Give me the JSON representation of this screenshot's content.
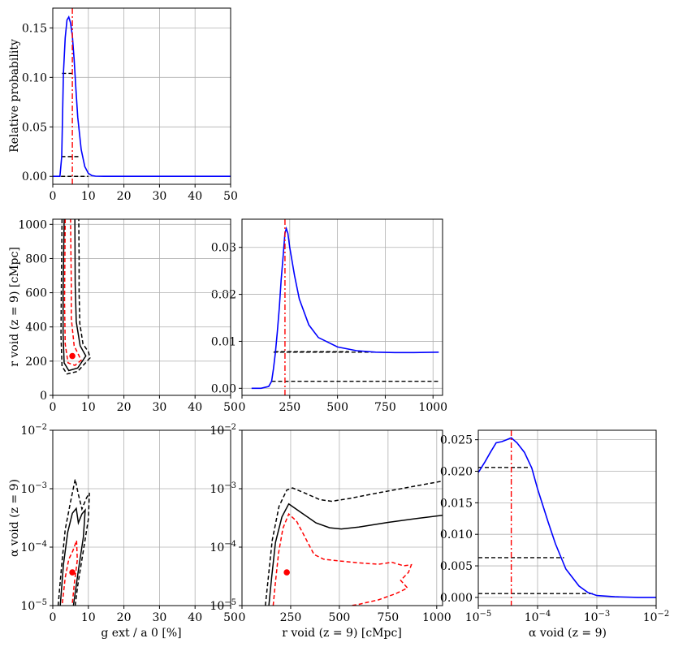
{
  "colors": {
    "pdf": "#0000ff",
    "marker": "#ff0000",
    "contour_black": "#000000",
    "contour_red": "#ff0000",
    "grid": "#b0b0b0"
  },
  "chart_data": [
    {
      "id": "g_pdf",
      "type": "line",
      "panel": "top-left",
      "xlim": [
        0,
        50
      ],
      "ylim": [
        -0.008,
        0.17
      ],
      "grid": true,
      "xticks": [
        "0",
        "10",
        "20",
        "30",
        "40",
        "50"
      ],
      "yticks": [
        "0.00",
        "0.05",
        "0.10",
        "0.15"
      ],
      "ylabel": "Relative probability",
      "xlabel": "",
      "series": [
        {
          "x": [
            0,
            2,
            2.5,
            3,
            3.5,
            4,
            4.5,
            5,
            5.5,
            6,
            6.5,
            7,
            8,
            9,
            10,
            11,
            12,
            15,
            20,
            30,
            40,
            50
          ],
          "y": [
            0,
            0,
            0.02,
            0.104,
            0.14,
            0.158,
            0.161,
            0.155,
            0.142,
            0.118,
            0.088,
            0.06,
            0.027,
            0.01,
            0.003,
            0.0008,
            0.0002,
            0,
            0,
            0,
            0,
            0
          ]
        }
      ],
      "vline": 5.5,
      "hlines": [
        {
          "y": 0.104,
          "x": [
            2.6,
            5.4
          ]
        },
        {
          "y": 0.02,
          "x": [
            2.4,
            7.2
          ]
        },
        {
          "y": 0.0,
          "x": [
            0.5,
            10
          ]
        }
      ]
    },
    {
      "id": "rvoid_pdf",
      "type": "line",
      "panel": "middle-center",
      "xlim": [
        0,
        1050
      ],
      "ylim": [
        -0.0015,
        0.036
      ],
      "grid": true,
      "xticks": [
        "0",
        "250",
        "500",
        "750",
        "1000"
      ],
      "yticks": [
        "0.00",
        "0.01",
        "0.02",
        "0.03"
      ],
      "xlabel": "",
      "ylabel": "",
      "series": [
        {
          "x": [
            50,
            100,
            140,
            155,
            165,
            175,
            185,
            195,
            205,
            215,
            225,
            232,
            240,
            250,
            275,
            300,
            350,
            400,
            500,
            600,
            700,
            800,
            900,
            1030
          ],
          "y": [
            0,
            0,
            0.0004,
            0.0015,
            0.0042,
            0.0077,
            0.012,
            0.017,
            0.023,
            0.028,
            0.033,
            0.034,
            0.033,
            0.03,
            0.024,
            0.019,
            0.0135,
            0.0108,
            0.0088,
            0.008,
            0.0077,
            0.0076,
            0.0076,
            0.0077
          ]
        }
      ],
      "vline": 225,
      "hlines": [
        {
          "y": 0.0077,
          "x": [
            165,
            700
          ]
        },
        {
          "y": 0.0015,
          "x": [
            155,
            1030
          ]
        },
        {
          "y": 0.0078,
          "x": [
            170,
            560
          ]
        }
      ]
    },
    {
      "id": "alpha_pdf",
      "type": "line",
      "panel": "bottom-right",
      "xscale": "log",
      "xlim": [
        1e-05,
        0.01
      ],
      "ylim": [
        -0.0013,
        0.0265
      ],
      "grid": true,
      "xticks": [
        "10−5",
        "10−4",
        "10−3",
        "10−2"
      ],
      "yticks": [
        "0.000",
        "0.005",
        "0.010",
        "0.015",
        "0.020",
        "0.025"
      ],
      "xlabel": "α void (z = 9)",
      "ylabel": "",
      "series": [
        {
          "x": [
            1e-05,
            1.3e-05,
            1.6e-05,
            2e-05,
            2.5e-05,
            3e-05,
            3.6e-05,
            4.5e-05,
            6e-05,
            8e-05,
            0.0001,
            0.00015,
            0.0002,
            0.0003,
            0.0005,
            0.0007,
            0.001,
            0.002,
            0.005,
            0.01
          ],
          "y": [
            0.0198,
            0.0215,
            0.023,
            0.0245,
            0.0247,
            0.025,
            0.0253,
            0.0245,
            0.023,
            0.0205,
            0.0172,
            0.012,
            0.0085,
            0.0045,
            0.0018,
            0.0008,
            0.0003,
            0.0001,
            0,
            0
          ]
        }
      ],
      "vline": 3.6e-05,
      "hlines": [
        {
          "y": 0.0206,
          "x": [
            1e-05,
            7.5e-05
          ]
        },
        {
          "y": 0.0063,
          "x": [
            1e-05,
            0.00028
          ]
        },
        {
          "y": 0.0006,
          "x": [
            1e-05,
            0.00085
          ]
        }
      ]
    },
    {
      "id": "g_vs_rvoid",
      "type": "contour",
      "panel": "middle-left",
      "xlim": [
        0,
        50
      ],
      "ylim": [
        0,
        1030
      ],
      "grid": true,
      "xticks": [
        "0",
        "10",
        "20",
        "30",
        "40",
        "50"
      ],
      "yticks": [
        "0",
        "200",
        "400",
        "600",
        "800",
        "1000"
      ],
      "ylabel": "r void (z = 9) [cMpc]",
      "xlabel": "",
      "point": {
        "x": 5.5,
        "y": 230
      },
      "contours": [
        {
          "style": "dashed",
          "color": "black",
          "points": [
            [
              2.6,
              1030
            ],
            [
              2.4,
              600
            ],
            [
              2.3,
              350
            ],
            [
              2.6,
              170
            ],
            [
              4,
              125
            ],
            [
              7,
              140
            ],
            [
              10.5,
              220
            ],
            [
              10,
              255
            ],
            [
              8.5,
              300
            ],
            [
              7.6,
              420
            ],
            [
              7.4,
              600
            ],
            [
              7.4,
              800
            ],
            [
              7.3,
              1030
            ]
          ]
        },
        {
          "style": "solid",
          "color": "black",
          "points": [
            [
              3.2,
              1030
            ],
            [
              2.9,
              600
            ],
            [
              2.9,
              360
            ],
            [
              3.2,
              190
            ],
            [
              4.5,
              145
            ],
            [
              7,
              160
            ],
            [
              9.3,
              230
            ],
            [
              7.7,
              290
            ],
            [
              6.6,
              430
            ],
            [
              6.3,
              650
            ],
            [
              6.2,
              1030
            ]
          ]
        },
        {
          "style": "dashed",
          "color": "red",
          "points": [
            [
              3.5,
              1030
            ],
            [
              3.3,
              550
            ],
            [
              3.5,
              300
            ],
            [
              4.3,
              190
            ],
            [
              6.2,
              175
            ],
            [
              8,
              205
            ],
            [
              6,
              290
            ],
            [
              5.2,
              450
            ],
            [
              5.2,
              650
            ],
            [
              5.1,
              850
            ],
            [
              5,
              1030
            ]
          ]
        }
      ]
    },
    {
      "id": "g_vs_alpha",
      "type": "contour",
      "panel": "bottom-left",
      "yscale": "log",
      "xlim": [
        0,
        50
      ],
      "ylim": [
        1e-05,
        0.01
      ],
      "grid": true,
      "xticks": [
        "0",
        "10",
        "20",
        "30",
        "40",
        "50"
      ],
      "yticks": [
        "10−5",
        "10−4",
        "10−3",
        "10−2"
      ],
      "xlabel": "g ext / a 0 [%]",
      "ylabel": "α void (z = 9)",
      "point": {
        "x": 5.5,
        "y": 3.7e-05
      },
      "contours": [
        {
          "style": "dashed",
          "color": "black",
          "points": [
            [
              1.5,
              1e-05
            ],
            [
              2.5,
              5e-05
            ],
            [
              3.5,
              0.0002
            ],
            [
              5,
              0.0006
            ],
            [
              6.3,
              0.00145
            ],
            [
              7.2,
              0.0008
            ],
            [
              8.2,
              0.00045
            ],
            [
              9.5,
              0.0007
            ],
            [
              10.3,
              0.00085
            ],
            [
              10,
              0.0003
            ],
            [
              8.5,
              8e-05
            ],
            [
              7,
              2.2e-05
            ],
            [
              6.3,
              1e-05
            ]
          ]
        },
        {
          "style": "solid",
          "color": "black",
          "points": [
            [
              2.1,
              1e-05
            ],
            [
              3,
              5e-05
            ],
            [
              4.2,
              0.00018
            ],
            [
              5.5,
              0.00038
            ],
            [
              6.6,
              0.00046
            ],
            [
              7.2,
              0.00026
            ],
            [
              8.2,
              0.00037
            ],
            [
              9.1,
              0.00043
            ],
            [
              8.6,
              0.00015
            ],
            [
              7.2,
              4e-05
            ],
            [
              5.8,
              1e-05
            ]
          ]
        },
        {
          "style": "dashed",
          "color": "red",
          "points": [
            [
              2.7,
              1.1e-05
            ],
            [
              3.5,
              3e-05
            ],
            [
              4.5,
              6.2e-05
            ],
            [
              5.6,
              8.5e-05
            ],
            [
              6.7,
              0.00013
            ],
            [
              6.9,
              6e-05
            ],
            [
              6.1,
              2.5e-05
            ],
            [
              5.5,
              1.1e-05
            ]
          ]
        }
      ]
    },
    {
      "id": "rvoid_vs_alpha",
      "type": "contour",
      "panel": "bottom-center",
      "yscale": "log",
      "xlim": [
        0,
        1030
      ],
      "ylim": [
        1e-05,
        0.01
      ],
      "grid": true,
      "xticks": [
        "0",
        "250",
        "500",
        "750",
        "1000"
      ],
      "yticks": [
        "10−5",
        "10−4",
        "10−3",
        "10−2"
      ],
      "xlabel": "r void (z = 9) [cMpc]",
      "ylabel": "",
      "point": {
        "x": 230,
        "y": 3.7e-05
      },
      "contours": [
        {
          "style": "dashed",
          "color": "black",
          "points": [
            [
              120,
              1e-05
            ],
            [
              135,
              3e-05
            ],
            [
              155,
              0.00013
            ],
            [
              190,
              0.0005
            ],
            [
              230,
              0.00095
            ],
            [
              260,
              0.00103
            ],
            [
              320,
              0.00085
            ],
            [
              400,
              0.00065
            ],
            [
              460,
              0.00061
            ],
            [
              550,
              0.00068
            ],
            [
              700,
              0.00085
            ],
            [
              850,
              0.00105
            ],
            [
              1030,
              0.00135
            ]
          ]
        },
        {
          "style": "solid",
          "color": "black",
          "points": [
            [
              138,
              1e-05
            ],
            [
              152,
              3e-05
            ],
            [
              172,
              0.00012
            ],
            [
              205,
              0.00033
            ],
            [
              240,
              0.00055
            ],
            [
              300,
              0.0004
            ],
            [
              380,
              0.00026
            ],
            [
              450,
              0.000215
            ],
            [
              510,
              0.000205
            ],
            [
              600,
              0.00022
            ],
            [
              750,
              0.000265
            ],
            [
              900,
              0.00031
            ],
            [
              1030,
              0.00035
            ]
          ]
        },
        {
          "style": "dashed",
          "color": "red",
          "points": [
            [
              160,
              1e-05
            ],
            [
              172,
              2.5e-05
            ],
            [
              188,
              8e-05
            ],
            [
              210,
              0.00021
            ],
            [
              240,
              0.00037
            ],
            [
              280,
              0.00028
            ],
            [
              330,
              0.000135
            ],
            [
              370,
              7.5e-05
            ],
            [
              420,
              6.2e-05
            ],
            [
              500,
              5.8e-05
            ],
            [
              600,
              5.4e-05
            ],
            [
              700,
              5.1e-05
            ],
            [
              770,
              5.5e-05
            ],
            [
              830,
              4.8e-05
            ],
            [
              870,
              5e-05
            ],
            [
              855,
              3.7e-05
            ],
            [
              815,
              2.7e-05
            ],
            [
              850,
              2e-05
            ],
            [
              790,
              1.6e-05
            ],
            [
              740,
              1.4e-05
            ],
            [
              700,
              1.25e-05
            ],
            [
              650,
              1.15e-05
            ],
            [
              600,
              1.05e-05
            ],
            [
              560,
              1e-05
            ]
          ]
        }
      ]
    }
  ]
}
